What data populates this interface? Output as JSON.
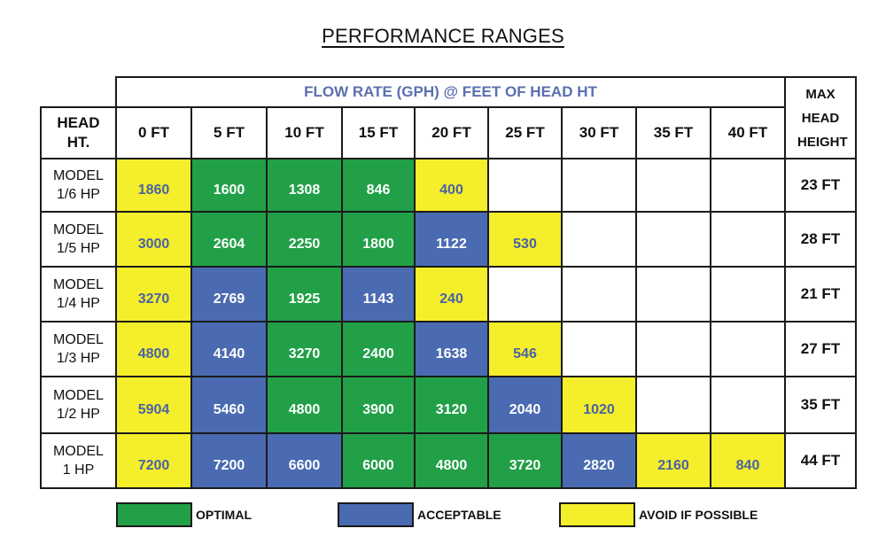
{
  "title": "PERFORMANCE RANGES",
  "table": {
    "head_label": "HEAD HT.",
    "flow_header": "FLOW RATE (GPH) @ FEET OF HEAD HT",
    "max_header": "MAX HEAD HEIGHT",
    "columns": [
      "0 FT",
      "5 FT",
      "10 FT",
      "15 FT",
      "20 FT",
      "25 FT",
      "30 FT",
      "35 FT",
      "40 FT"
    ],
    "rows": [
      {
        "model": "MODEL 1/6 HP",
        "max": "23 FT",
        "cells": [
          {
            "value": "1860",
            "rating": "yellow"
          },
          {
            "value": "1600",
            "rating": "green"
          },
          {
            "value": "1308",
            "rating": "green"
          },
          {
            "value": "846",
            "rating": "green"
          },
          {
            "value": "400",
            "rating": "yellow"
          },
          {
            "value": "",
            "rating": "none"
          },
          {
            "value": "",
            "rating": "none"
          },
          {
            "value": "",
            "rating": "none"
          },
          {
            "value": "",
            "rating": "none"
          }
        ]
      },
      {
        "model": "MODEL 1/5 HP",
        "max": "28 FT",
        "cells": [
          {
            "value": "3000",
            "rating": "yellow"
          },
          {
            "value": "2604",
            "rating": "green"
          },
          {
            "value": "2250",
            "rating": "green"
          },
          {
            "value": "1800",
            "rating": "green"
          },
          {
            "value": "1122",
            "rating": "blue"
          },
          {
            "value": "530",
            "rating": "yellow"
          },
          {
            "value": "",
            "rating": "none"
          },
          {
            "value": "",
            "rating": "none"
          },
          {
            "value": "",
            "rating": "none"
          }
        ]
      },
      {
        "model": "MODEL 1/4 HP",
        "max": "21 FT",
        "cells": [
          {
            "value": "3270",
            "rating": "yellow"
          },
          {
            "value": "2769",
            "rating": "blue"
          },
          {
            "value": "1925",
            "rating": "green"
          },
          {
            "value": "1143",
            "rating": "blue"
          },
          {
            "value": "240",
            "rating": "yellow"
          },
          {
            "value": "",
            "rating": "none"
          },
          {
            "value": "",
            "rating": "none"
          },
          {
            "value": "",
            "rating": "none"
          },
          {
            "value": "",
            "rating": "none"
          }
        ]
      },
      {
        "model": "MODEL 1/3 HP",
        "max": "27 FT",
        "cells": [
          {
            "value": "4800",
            "rating": "yellow"
          },
          {
            "value": "4140",
            "rating": "blue"
          },
          {
            "value": "3270",
            "rating": "green"
          },
          {
            "value": "2400",
            "rating": "green"
          },
          {
            "value": "1638",
            "rating": "blue"
          },
          {
            "value": "546",
            "rating": "yellow"
          },
          {
            "value": "",
            "rating": "none"
          },
          {
            "value": "",
            "rating": "none"
          },
          {
            "value": "",
            "rating": "none"
          }
        ]
      },
      {
        "model": "MODEL 1/2 HP",
        "max": "35 FT",
        "cells": [
          {
            "value": "5904",
            "rating": "yellow"
          },
          {
            "value": "5460",
            "rating": "blue"
          },
          {
            "value": "4800",
            "rating": "green"
          },
          {
            "value": "3900",
            "rating": "green"
          },
          {
            "value": "3120",
            "rating": "green"
          },
          {
            "value": "2040",
            "rating": "blue"
          },
          {
            "value": "1020",
            "rating": "yellow"
          },
          {
            "value": "",
            "rating": "none"
          },
          {
            "value": "",
            "rating": "none"
          }
        ]
      },
      {
        "model": "MODEL 1 HP",
        "max": "44 FT",
        "cells": [
          {
            "value": "7200",
            "rating": "yellow"
          },
          {
            "value": "7200",
            "rating": "blue"
          },
          {
            "value": "6600",
            "rating": "blue"
          },
          {
            "value": "6000",
            "rating": "green"
          },
          {
            "value": "4800",
            "rating": "green"
          },
          {
            "value": "3720",
            "rating": "green"
          },
          {
            "value": "2820",
            "rating": "blue"
          },
          {
            "value": "2160",
            "rating": "yellow"
          },
          {
            "value": "840",
            "rating": "yellow"
          }
        ]
      }
    ]
  },
  "legend": [
    {
      "label": "OPTIMAL",
      "color": "#21a047"
    },
    {
      "label": "ACCEPTABLE",
      "color": "#4a6bb1"
    },
    {
      "label": "AVOID IF POSSIBLE",
      "color": "#f5ee2a"
    }
  ],
  "colors": {
    "green": "#21a047",
    "blue": "#4a6bb1",
    "yellow": "#f5ee2a",
    "header_text": "#5b6fb0"
  },
  "chart_data": {
    "type": "table",
    "title": "PERFORMANCE RANGES",
    "column_header": "FLOW RATE (GPH) @ FEET OF HEAD HT",
    "row_header": "HEAD HT.",
    "columns": [
      "0 FT",
      "5 FT",
      "10 FT",
      "15 FT",
      "20 FT",
      "25 FT",
      "30 FT",
      "35 FT",
      "40 FT"
    ],
    "rows": [
      "MODEL 1/6 HP",
      "MODEL 1/5 HP",
      "MODEL 1/4 HP",
      "MODEL 1/3 HP",
      "MODEL 1/2 HP",
      "MODEL 1 HP"
    ],
    "values": [
      [
        1860,
        1600,
        1308,
        846,
        400,
        null,
        null,
        null,
        null
      ],
      [
        3000,
        2604,
        2250,
        1800,
        1122,
        530,
        null,
        null,
        null
      ],
      [
        3270,
        2769,
        1925,
        1143,
        240,
        null,
        null,
        null,
        null
      ],
      [
        4800,
        4140,
        3270,
        2400,
        1638,
        546,
        null,
        null,
        null
      ],
      [
        5904,
        5460,
        4800,
        3900,
        3120,
        2040,
        1020,
        null,
        null
      ],
      [
        7200,
        7200,
        6600,
        6000,
        4800,
        3720,
        2820,
        2160,
        840
      ]
    ],
    "max_head_height_column": "MAX HEAD HEIGHT",
    "max_head_height": [
      "23 FT",
      "28 FT",
      "21 FT",
      "27 FT",
      "35 FT",
      "44 FT"
    ],
    "legend": [
      "OPTIMAL",
      "ACCEPTABLE",
      "AVOID IF POSSIBLE"
    ]
  }
}
